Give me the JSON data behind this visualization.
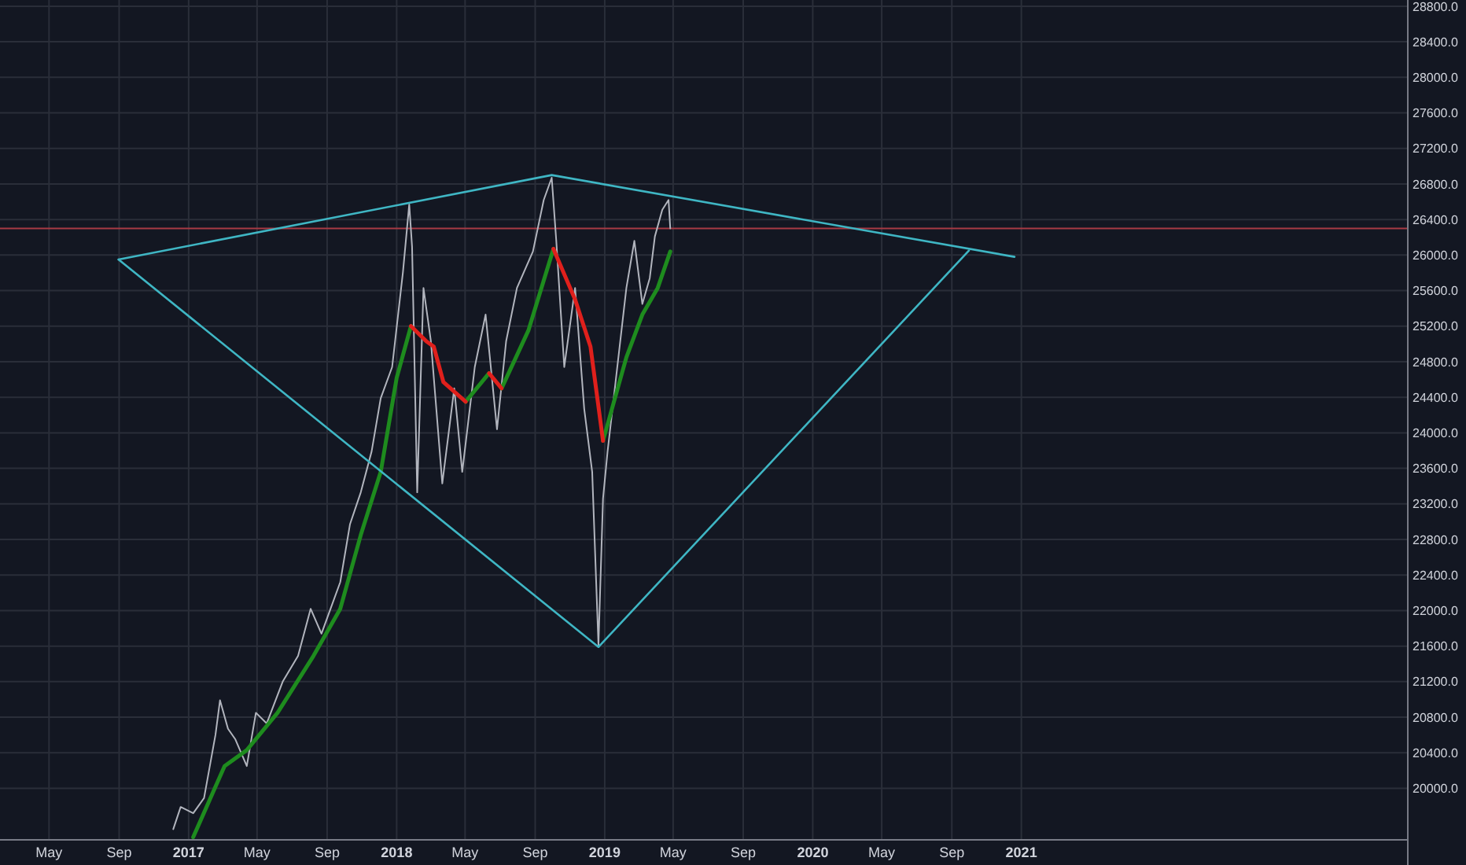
{
  "chart_data": {
    "type": "line",
    "grid": true,
    "xlim": [
      "2016-02-05",
      "2022-11-10"
    ],
    "xticks": [
      {
        "value": "2016-05-01",
        "label": "May"
      },
      {
        "value": "2016-09-01",
        "label": "Sep"
      },
      {
        "value": "2017-01-01",
        "label": "2017"
      },
      {
        "value": "2017-05-01",
        "label": "May"
      },
      {
        "value": "2017-09-01",
        "label": "Sep"
      },
      {
        "value": "2018-01-01",
        "label": "2018"
      },
      {
        "value": "2018-05-01",
        "label": "May"
      },
      {
        "value": "2018-09-01",
        "label": "Sep"
      },
      {
        "value": "2019-01-01",
        "label": "2019"
      },
      {
        "value": "2019-05-01",
        "label": "May"
      },
      {
        "value": "2019-09-01",
        "label": "Sep"
      },
      {
        "value": "2020-01-01",
        "label": "2020"
      },
      {
        "value": "2020-05-01",
        "label": "May"
      },
      {
        "value": "2020-09-01",
        "label": "Sep"
      },
      {
        "value": "2021-01-01",
        "label": "2021"
      }
    ],
    "ylim": [
      19420,
      28870
    ],
    "yticks": [
      {
        "value": 20000,
        "label": "20000.0"
      },
      {
        "value": 20400,
        "label": "20400.0"
      },
      {
        "value": 20800,
        "label": "20800.0"
      },
      {
        "value": 21200,
        "label": "21200.0"
      },
      {
        "value": 21600,
        "label": "21600.0"
      },
      {
        "value": 22000,
        "label": "22000.0"
      },
      {
        "value": 22400,
        "label": "22400.0"
      },
      {
        "value": 22800,
        "label": "22800.0"
      },
      {
        "value": 23200,
        "label": "23200.0"
      },
      {
        "value": 23600,
        "label": "23600.0"
      },
      {
        "value": 24000,
        "label": "24000.0"
      },
      {
        "value": 24400,
        "label": "24400.0"
      },
      {
        "value": 24800,
        "label": "24800.0"
      },
      {
        "value": 25200,
        "label": "25200.0"
      },
      {
        "value": 25600,
        "label": "25600.0"
      },
      {
        "value": 26000,
        "label": "26000.0"
      },
      {
        "value": 26400,
        "label": "26400.0"
      },
      {
        "value": 26800,
        "label": "26800.0"
      },
      {
        "value": 27200,
        "label": "27200.0"
      },
      {
        "value": 27600,
        "label": "27600.0"
      },
      {
        "value": 28000,
        "label": "28000.0"
      },
      {
        "value": 28400,
        "label": "28400.0"
      },
      {
        "value": 28800,
        "label": "28800.0"
      }
    ],
    "ref_lines": [
      {
        "axis": "y",
        "value": 26300,
        "color": "#a83a44"
      }
    ],
    "series": [
      {
        "color": "#b2b5be",
        "x": [
          "2016-12-05",
          "2016-12-18",
          "2017-01-09",
          "2017-01-28",
          "2017-02-17",
          "2017-02-25",
          "2017-03-11",
          "2017-03-24",
          "2017-04-13",
          "2017-04-29",
          "2017-05-18",
          "2017-06-15",
          "2017-07-12",
          "2017-08-03",
          "2017-08-22",
          "2017-09-24",
          "2017-10-11",
          "2017-10-30",
          "2017-11-18",
          "2017-12-04",
          "2017-12-24",
          "2018-01-12",
          "2018-01-23",
          "2018-01-28",
          "2018-02-06",
          "2018-02-17",
          "2018-03-02",
          "2018-03-22",
          "2018-04-12",
          "2018-04-26",
          "2018-05-18",
          "2018-06-06",
          "2018-06-26",
          "2018-07-12",
          "2018-07-31",
          "2018-08-28",
          "2018-09-16",
          "2018-09-30",
          "2018-10-08",
          "2018-10-22",
          "2018-11-10",
          "2018-11-26",
          "2018-12-10",
          "2018-12-21",
          "2018-12-29",
          "2019-01-06",
          "2019-01-20",
          "2019-02-08",
          "2019-02-22",
          "2019-03-08",
          "2019-03-21",
          "2019-03-30",
          "2019-04-12",
          "2019-04-23",
          "2019-04-26"
        ],
        "values": [
          19540,
          19790,
          19720,
          19890,
          20600,
          20990,
          20670,
          20550,
          20250,
          20850,
          20730,
          21200,
          21490,
          22020,
          21740,
          22320,
          22970,
          23330,
          23790,
          24390,
          24740,
          25810,
          26570,
          26090,
          23330,
          25630,
          25030,
          23430,
          24500,
          23560,
          24740,
          25330,
          24040,
          25030,
          25630,
          26040,
          26620,
          26870,
          26160,
          24740,
          25630,
          24270,
          23560,
          21610,
          23260,
          23790,
          24570,
          25630,
          26160,
          25450,
          25740,
          26210,
          26510,
          26620,
          26300
        ]
      },
      {
        "color": "#1e8c1e",
        "x": [
          "2017-01-09",
          "2017-03-05",
          "2017-04-13",
          "2017-06-06",
          "2017-08-08",
          "2017-09-24",
          "2017-10-30",
          "2017-12-04",
          "2018-01-01",
          "2018-01-26"
        ],
        "values": [
          19450,
          20250,
          20430,
          20850,
          21490,
          22020,
          22850,
          23560,
          24620,
          25200
        ]
      },
      {
        "color": "#1e8c1e",
        "x": [
          "2018-05-02",
          "2018-06-12"
        ],
        "values": [
          24350,
          24670
        ]
      },
      {
        "color": "#1e8c1e",
        "x": [
          "2018-07-04",
          "2018-08-20",
          "2018-10-03"
        ],
        "values": [
          24500,
          25150,
          26070
        ]
      },
      {
        "color": "#1e8c1e",
        "x": [
          "2018-12-29",
          "2019-02-08",
          "2019-03-08",
          "2019-04-04",
          "2019-04-26"
        ],
        "values": [
          23910,
          24850,
          25330,
          25630,
          26040
        ]
      },
      {
        "color": "#e0201c",
        "x": [
          "2018-01-26",
          "2018-02-22",
          "2018-03-07",
          "2018-03-24",
          "2018-05-02"
        ],
        "values": [
          25200,
          25030,
          24970,
          24570,
          24350
        ]
      },
      {
        "color": "#e0201c",
        "x": [
          "2018-06-12",
          "2018-07-04"
        ],
        "values": [
          24670,
          24500
        ]
      },
      {
        "color": "#e0201c",
        "x": [
          "2018-10-03",
          "2018-11-10",
          "2018-12-07",
          "2018-12-29"
        ],
        "values": [
          26070,
          25500,
          24970,
          23910
        ]
      },
      {
        "color": "#3fb6c4",
        "x": [
          "2016-08-31",
          "2018-09-30",
          "2020-12-20"
        ],
        "values": [
          25950,
          26900,
          25980
        ]
      },
      {
        "color": "#3fb6c4",
        "x": [
          "2016-08-31",
          "2018-12-21",
          "2020-10-01"
        ],
        "values": [
          25950,
          21590,
          26050
        ]
      }
    ]
  }
}
